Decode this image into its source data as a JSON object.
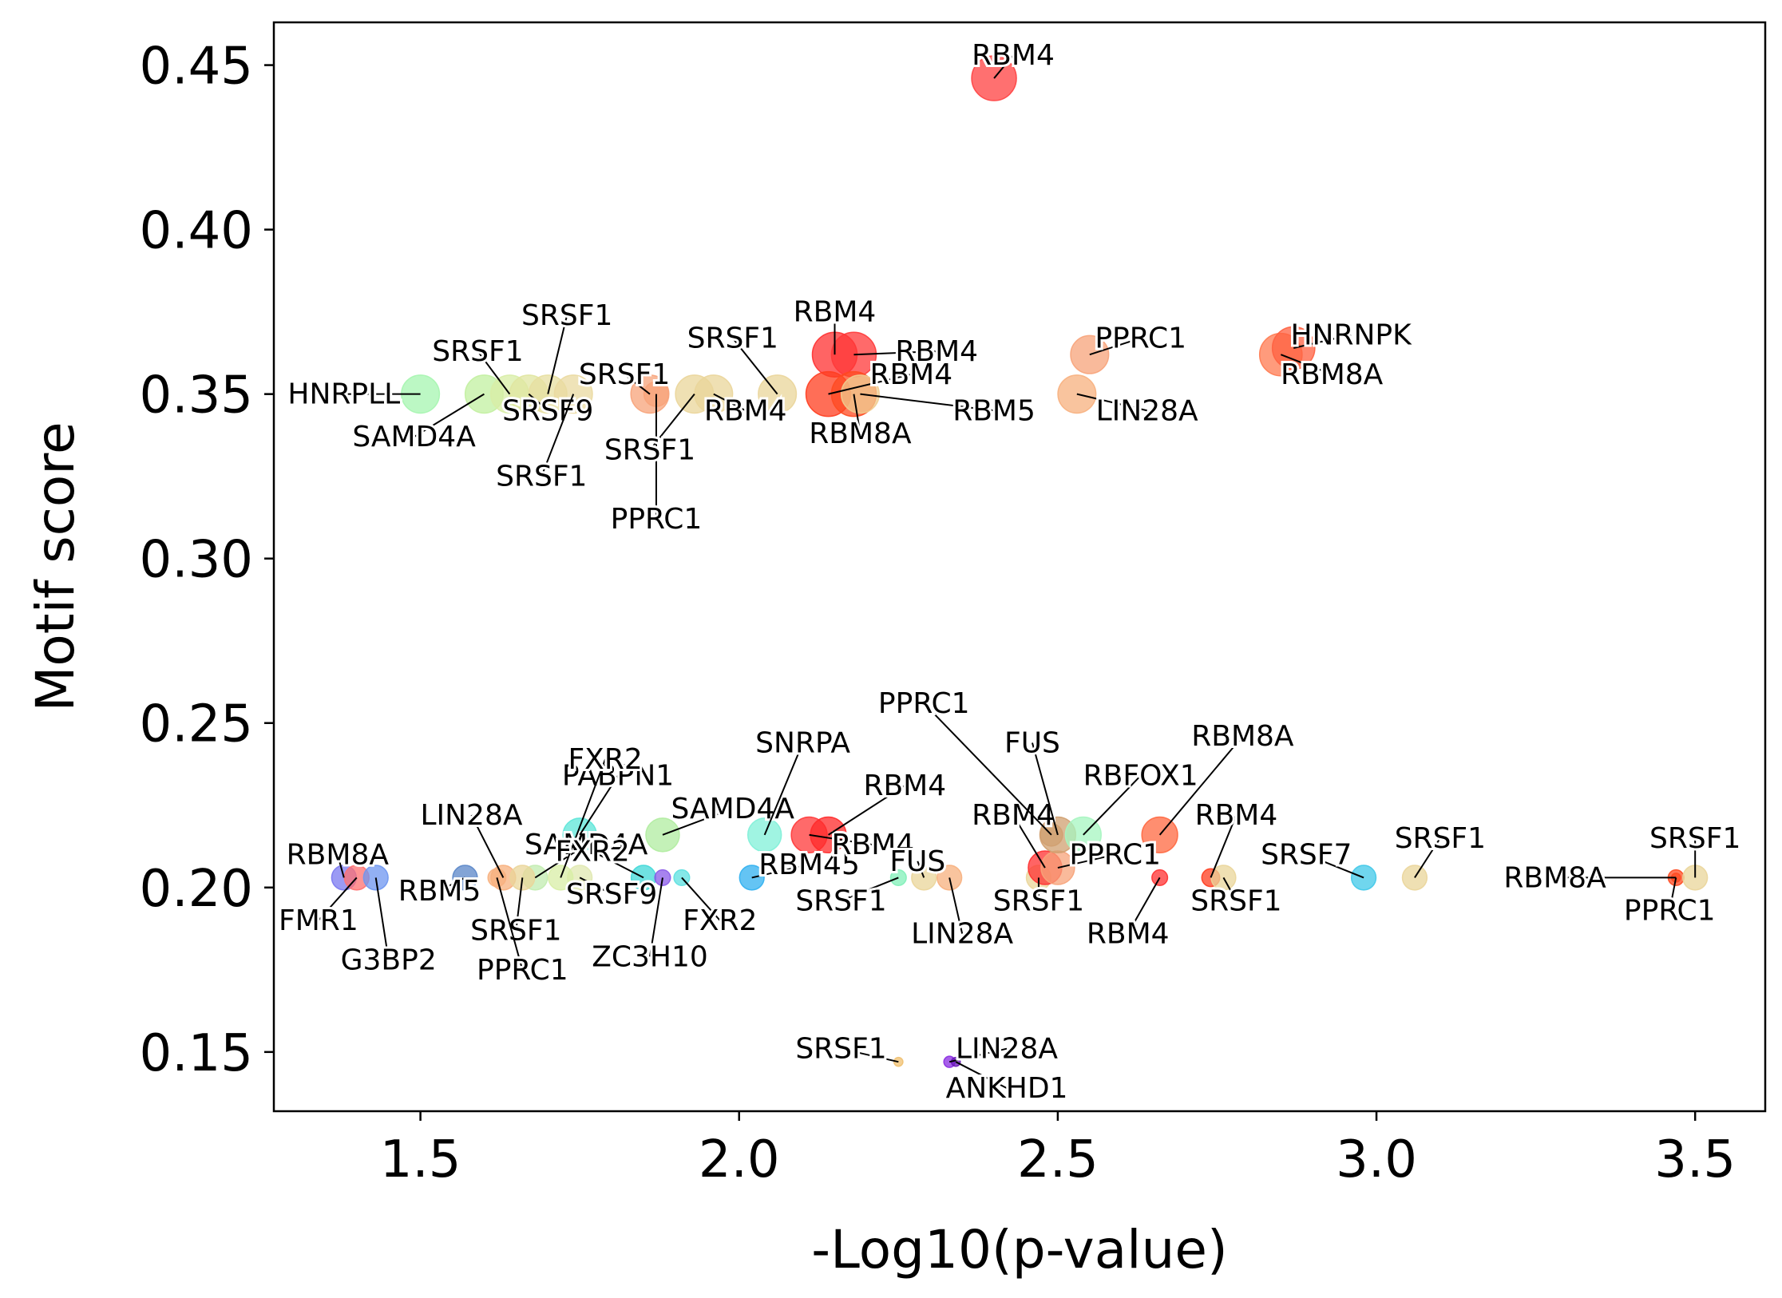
{
  "chart_data": {
    "type": "scatter",
    "title": "",
    "xlabel": "-Log10(p-value)",
    "ylabel": "Motif score",
    "xlim": [
      1.27,
      3.61
    ],
    "ylim": [
      0.132,
      0.463
    ],
    "xticks": [
      "1.5",
      "2.0",
      "2.5",
      "3.0",
      "3.5"
    ],
    "yticks": [
      "0.15",
      "0.20",
      "0.25",
      "0.30",
      "0.35",
      "0.40",
      "0.45"
    ],
    "grid": false,
    "legend": "none",
    "points": [
      {
        "x": 2.4,
        "y": 0.446,
        "size": 1.0,
        "color": "#ff4040",
        "label": "RBM4",
        "lx": 2.43,
        "ly": 0.453
      },
      {
        "x": 1.5,
        "y": 0.35,
        "size": 0.85,
        "color": "#a6f5b0",
        "label": "HNRPLL",
        "lx": 1.38,
        "ly": 0.35
      },
      {
        "x": 1.6,
        "y": 0.35,
        "size": 0.85,
        "color": "#c2f0a0",
        "label": "SAMD4A",
        "lx": 1.49,
        "ly": 0.337
      },
      {
        "x": 1.64,
        "y": 0.35,
        "size": 0.85,
        "color": "#d8eda6",
        "label": "SRSF1",
        "lx": 1.59,
        "ly": 0.363
      },
      {
        "x": 1.67,
        "y": 0.35,
        "size": 0.85,
        "color": "#e0e6a0",
        "label": "SRSF9",
        "lx": 1.7,
        "ly": 0.345
      },
      {
        "x": 1.7,
        "y": 0.35,
        "size": 0.85,
        "color": "#e7dfa0",
        "label": "SRSF1",
        "lx": 1.73,
        "ly": 0.374
      },
      {
        "x": 1.74,
        "y": 0.35,
        "size": 0.85,
        "color": "#ead9a0",
        "label": "SRSF1",
        "lx": 1.69,
        "ly": 0.325
      },
      {
        "x": 1.86,
        "y": 0.35,
        "size": 0.85,
        "color": "#f7a37a",
        "label": "SRSF1",
        "lx": 1.82,
        "ly": 0.356
      },
      {
        "x": 1.87,
        "y": 0.35,
        "size": 0.55,
        "color": "#f7a37a",
        "label": "PPRC1",
        "lx": 1.87,
        "ly": 0.312
      },
      {
        "x": 1.93,
        "y": 0.35,
        "size": 0.85,
        "color": "#ead59a",
        "label": "SRSF1",
        "lx": 1.86,
        "ly": 0.333
      },
      {
        "x": 1.96,
        "y": 0.35,
        "size": 0.85,
        "color": "#ead59a",
        "label": "RBM4",
        "lx": 2.01,
        "ly": 0.345
      },
      {
        "x": 2.06,
        "y": 0.35,
        "size": 0.85,
        "color": "#ead59a",
        "label": "SRSF1",
        "lx": 1.99,
        "ly": 0.367
      },
      {
        "x": 2.15,
        "y": 0.362,
        "size": 1.0,
        "color": "#ff3030",
        "label": "RBM4",
        "lx": 2.15,
        "ly": 0.375
      },
      {
        "x": 2.18,
        "y": 0.362,
        "size": 1.0,
        "color": "#ff3838",
        "label": "RBM4",
        "lx": 2.31,
        "ly": 0.363
      },
      {
        "x": 2.14,
        "y": 0.35,
        "size": 1.0,
        "color": "#ff3d1f",
        "label": "RBM4",
        "lx": 2.27,
        "ly": 0.356
      },
      {
        "x": 2.18,
        "y": 0.35,
        "size": 1.0,
        "color": "#ff4a20",
        "label": "RBM8A",
        "lx": 2.19,
        "ly": 0.338
      },
      {
        "x": 2.19,
        "y": 0.35,
        "size": 0.85,
        "color": "#f0cc90",
        "label": "RBM5",
        "lx": 2.4,
        "ly": 0.345
      },
      {
        "x": 2.55,
        "y": 0.362,
        "size": 0.85,
        "color": "#f7a37a",
        "label": "PPRC1",
        "lx": 2.63,
        "ly": 0.367
      },
      {
        "x": 2.53,
        "y": 0.35,
        "size": 0.85,
        "color": "#f7b07e",
        "label": "LIN28A",
        "lx": 2.64,
        "ly": 0.345
      },
      {
        "x": 2.85,
        "y": 0.362,
        "size": 0.95,
        "color": "#ff7a50",
        "label": "RBM8A",
        "lx": 2.93,
        "ly": 0.356
      },
      {
        "x": 2.87,
        "y": 0.364,
        "size": 0.95,
        "color": "#ff6040",
        "label": "HNRNPK",
        "lx": 2.96,
        "ly": 0.368
      },
      {
        "x": 1.38,
        "y": 0.203,
        "size": 0.55,
        "color": "#7a78f0",
        "label": "RBM8A",
        "lx": 1.37,
        "ly": 0.21
      },
      {
        "x": 1.4,
        "y": 0.203,
        "size": 0.55,
        "color": "#ff7070",
        "label": "FMR1",
        "lx": 1.34,
        "ly": 0.19
      },
      {
        "x": 1.43,
        "y": 0.203,
        "size": 0.55,
        "color": "#6d96f0",
        "label": "G3BP2",
        "lx": 1.45,
        "ly": 0.178
      },
      {
        "x": 1.57,
        "y": 0.203,
        "size": 0.55,
        "color": "#5a86c8",
        "label": "RBM5",
        "lx": 1.53,
        "ly": 0.199
      },
      {
        "x": 1.63,
        "y": 0.203,
        "size": 0.55,
        "color": "#f7b07e",
        "label": "LIN28A",
        "lx": 1.58,
        "ly": 0.222
      },
      {
        "x": 1.68,
        "y": 0.203,
        "size": 0.55,
        "color": "#c2ecb0",
        "label": "SAMD4A",
        "lx": 1.76,
        "ly": 0.213
      },
      {
        "x": 1.75,
        "y": 0.203,
        "size": 0.55,
        "color": "#e0e8b0",
        "label": "SRSF9",
        "lx": 1.8,
        "ly": 0.198
      },
      {
        "x": 1.75,
        "y": 0.216,
        "size": 0.75,
        "color": "#5ce6d8",
        "label": "PABPN1",
        "lx": 1.81,
        "ly": 0.234
      },
      {
        "x": 1.88,
        "y": 0.216,
        "size": 0.75,
        "color": "#b0eca0",
        "label": "SAMD4A",
        "lx": 1.99,
        "ly": 0.224
      },
      {
        "x": 1.66,
        "y": 0.203,
        "size": 0.55,
        "color": "#ead59a",
        "label": "SRSF1",
        "lx": 1.65,
        "ly": 0.187
      },
      {
        "x": 1.62,
        "y": 0.203,
        "size": 0.4,
        "color": "#f7b07e",
        "label": "PPRC1",
        "lx": 1.66,
        "ly": 0.175
      },
      {
        "x": 1.72,
        "y": 0.203,
        "size": 0.55,
        "color": "#d8eea6",
        "label": "FXR2",
        "lx": 1.79,
        "ly": 0.239
      },
      {
        "x": 1.85,
        "y": 0.203,
        "size": 0.55,
        "color": "#40d8d8",
        "label": "FXR2",
        "lx": 1.77,
        "ly": 0.211
      },
      {
        "x": 1.88,
        "y": 0.203,
        "size": 0.35,
        "color": "#8a5ae8",
        "label": "ZC3H10",
        "lx": 1.86,
        "ly": 0.179
      },
      {
        "x": 1.91,
        "y": 0.203,
        "size": 0.35,
        "color": "#5ce0e0",
        "label": "FXR2",
        "lx": 1.97,
        "ly": 0.19
      },
      {
        "x": 2.02,
        "y": 0.203,
        "size": 0.55,
        "color": "#30b0f0",
        "label": "RBM45",
        "lx": 2.11,
        "ly": 0.207
      },
      {
        "x": 2.04,
        "y": 0.216,
        "size": 0.75,
        "color": "#80f0d8",
        "label": "SNRPA",
        "lx": 2.1,
        "ly": 0.244
      },
      {
        "x": 2.11,
        "y": 0.216,
        "size": 0.8,
        "color": "#ff3838",
        "label": "RBM4",
        "lx": 2.21,
        "ly": 0.213
      },
      {
        "x": 2.14,
        "y": 0.216,
        "size": 0.8,
        "color": "#ff2a2a",
        "label": "RBM4",
        "lx": 2.26,
        "ly": 0.231
      },
      {
        "x": 2.25,
        "y": 0.203,
        "size": 0.35,
        "color": "#80f0b8",
        "label": "SRSF1",
        "lx": 2.16,
        "ly": 0.196
      },
      {
        "x": 2.29,
        "y": 0.203,
        "size": 0.55,
        "color": "#ead59a",
        "label": "FUS",
        "lx": 2.28,
        "ly": 0.208
      },
      {
        "x": 2.33,
        "y": 0.203,
        "size": 0.55,
        "color": "#f7b07e",
        "label": "LIN28A",
        "lx": 2.35,
        "ly": 0.186
      },
      {
        "x": 2.47,
        "y": 0.203,
        "size": 0.55,
        "color": "#ead59a",
        "label": "SRSF1",
        "lx": 2.47,
        "ly": 0.196
      },
      {
        "x": 2.48,
        "y": 0.206,
        "size": 0.75,
        "color": "#ff3030",
        "label": "RBM4",
        "lx": 2.43,
        "ly": 0.222
      },
      {
        "x": 2.5,
        "y": 0.206,
        "size": 0.75,
        "color": "#f7a37a",
        "label": "PPRC1",
        "lx": 2.59,
        "ly": 0.21
      },
      {
        "x": 2.5,
        "y": 0.216,
        "size": 0.8,
        "color": "#d0a070",
        "label": "FUS",
        "lx": 2.46,
        "ly": 0.244
      },
      {
        "x": 2.49,
        "y": 0.216,
        "size": 0.5,
        "color": "#d0a070",
        "label": "PPRC1",
        "lx": 2.29,
        "ly": 0.256
      },
      {
        "x": 2.54,
        "y": 0.216,
        "size": 0.8,
        "color": "#a6f5c0",
        "label": "RBFOX1",
        "lx": 2.63,
        "ly": 0.234
      },
      {
        "x": 2.66,
        "y": 0.216,
        "size": 0.8,
        "color": "#ff6840",
        "label": "RBM8A",
        "lx": 2.79,
        "ly": 0.246
      },
      {
        "x": 2.66,
        "y": 0.203,
        "size": 0.35,
        "color": "#ff3030",
        "label": "RBM4",
        "lx": 2.61,
        "ly": 0.186
      },
      {
        "x": 2.74,
        "y": 0.203,
        "size": 0.4,
        "color": "#ff3d1f",
        "label": "RBM4",
        "lx": 2.78,
        "ly": 0.222
      },
      {
        "x": 2.76,
        "y": 0.203,
        "size": 0.55,
        "color": "#ead59a",
        "label": "SRSF1",
        "lx": 2.78,
        "ly": 0.196
      },
      {
        "x": 2.98,
        "y": 0.203,
        "size": 0.55,
        "color": "#40c8e8",
        "label": "SRSF7",
        "lx": 2.89,
        "ly": 0.21
      },
      {
        "x": 3.06,
        "y": 0.203,
        "size": 0.55,
        "color": "#ead59a",
        "label": "SRSF1",
        "lx": 3.1,
        "ly": 0.215
      },
      {
        "x": 3.47,
        "y": 0.203,
        "size": 0.35,
        "color": "#ff4a20",
        "label": "RBM8A",
        "lx": 3.28,
        "ly": 0.203
      },
      {
        "x": 3.5,
        "y": 0.203,
        "size": 0.55,
        "color": "#ead59a",
        "label": "SRSF1",
        "lx": 3.5,
        "ly": 0.215
      },
      {
        "x": 3.47,
        "y": 0.203,
        "size": 0.2,
        "color": "#ff4a20",
        "label": "PPRC1",
        "lx": 3.46,
        "ly": 0.193
      },
      {
        "x": 2.25,
        "y": 0.147,
        "size": 0.2,
        "color": "#f0c070",
        "label": "SRSF1",
        "lx": 2.16,
        "ly": 0.151
      },
      {
        "x": 2.33,
        "y": 0.147,
        "size": 0.25,
        "color": "#8a2be2",
        "label": "LIN28A",
        "lx": 2.42,
        "ly": 0.151
      },
      {
        "x": 2.34,
        "y": 0.147,
        "size": 0.2,
        "color": "#6a1ab8",
        "label": "ANKHD1",
        "lx": 2.42,
        "ly": 0.139
      }
    ]
  }
}
